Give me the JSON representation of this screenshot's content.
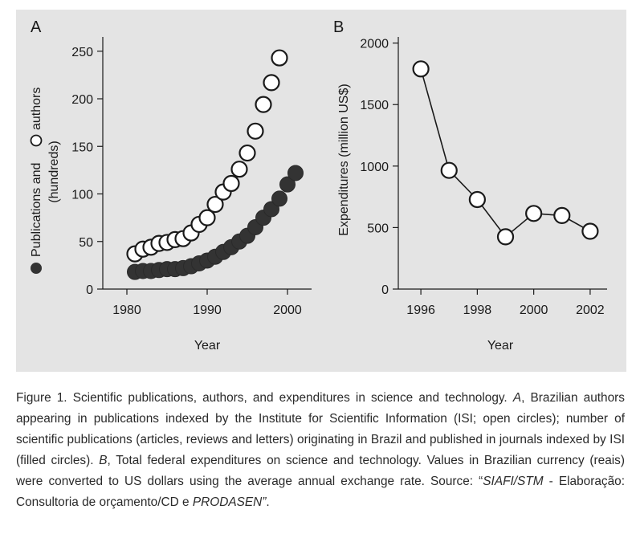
{
  "chart_data": [
    {
      "panel_label": "A",
      "type": "scatter",
      "xlabel": "Year",
      "ylabel_parts": [
        "Publications and",
        "authors",
        "(hundreds)"
      ],
      "xlim": [
        1977,
        2003
      ],
      "ylim": [
        0,
        265
      ],
      "x_ticks": [
        1980,
        1990,
        2000
      ],
      "y_ticks": [
        0,
        50,
        100,
        150,
        200,
        250
      ],
      "series": [
        {
          "marker": "open-circle",
          "x": [
            1981,
            1982,
            1983,
            1984,
            1985,
            1986,
            1987,
            1988,
            1989,
            1990,
            1991,
            1992,
            1993,
            1994,
            1995,
            1996,
            1997,
            1998,
            1999
          ],
          "y": [
            37,
            42,
            44,
            48,
            49,
            52,
            53,
            59,
            68,
            75,
            89,
            102,
            111,
            126,
            143,
            166,
            194,
            217,
            243
          ]
        },
        {
          "marker": "filled-circle",
          "x": [
            1981,
            1982,
            1983,
            1984,
            1985,
            1986,
            1987,
            1988,
            1989,
            1990,
            1991,
            1992,
            1993,
            1994,
            1995,
            1996,
            1997,
            1998,
            1999,
            2000,
            2001
          ],
          "y": [
            18,
            19,
            19,
            20,
            21,
            21,
            22,
            24,
            27,
            30,
            34,
            39,
            44,
            50,
            56,
            65,
            75,
            84,
            95,
            110,
            122
          ]
        }
      ]
    },
    {
      "panel_label": "B",
      "type": "line",
      "xlabel": "Year",
      "ylabel": "Expenditures (million US$)",
      "xlim": [
        1995.2,
        2002.6
      ],
      "ylim": [
        0,
        2050
      ],
      "x_ticks": [
        1996,
        1998,
        2000,
        2002
      ],
      "y_ticks": [
        0,
        500,
        1000,
        1500,
        2000
      ],
      "x": [
        1996,
        1997,
        1998,
        1999,
        2000,
        2001,
        2002
      ],
      "y": [
        1790,
        965,
        728,
        425,
        615,
        598,
        470
      ]
    }
  ],
  "caption": {
    "segments": [
      {
        "text": "Figure 1. Scientific publications, authors, and expenditures in science and technology. ",
        "italic": false
      },
      {
        "text": "A",
        "italic": true
      },
      {
        "text": ", Brazilian authors appearing in publications indexed by the Institute for Scientific Information (ISI; open circles); number of scientific publications (articles, reviews and letters) originating in Brazil and published in journals indexed by ISI (filled circles). ",
        "italic": false
      },
      {
        "text": "B",
        "italic": true
      },
      {
        "text": ", Total federal expenditures on science and technology. Values in Brazilian currency (reais) were converted to US dollars using the average annual exchange rate. Source: “",
        "italic": false
      },
      {
        "text": "SIAFI/STM",
        "italic": true
      },
      {
        "text": " - Elaboração: Consultoria de orçamento/CD e ",
        "italic": false
      },
      {
        "text": "PRODASEN”",
        "italic": true
      },
      {
        "text": ".",
        "italic": false
      }
    ]
  }
}
